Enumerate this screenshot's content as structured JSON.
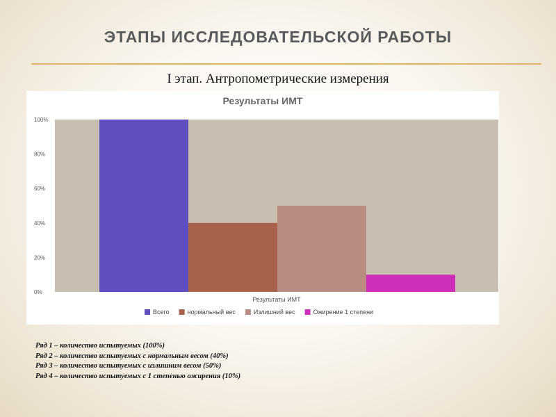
{
  "slide": {
    "title": "ЭТАПЫ ИССЛЕДОВАТЕЛЬСКОЙ РАБОТЫ",
    "subtitle": "I этап. Антропометрические измерения"
  },
  "chart_data": {
    "type": "bar",
    "title": "Результаты ИМТ",
    "xlabel": "Результаты ИМТ",
    "ylabel": "",
    "ylim": [
      0,
      100
    ],
    "y_ticks": [
      "0%",
      "20%",
      "40%",
      "60%",
      "80%",
      "100%"
    ],
    "y_tick_values": [
      0,
      20,
      40,
      60,
      80,
      100
    ],
    "grid": false,
    "legend_position": "bottom",
    "plot_background": "#c9bfb0",
    "series": [
      {
        "name": "Всего",
        "value": 100,
        "color": "#5f4fbf"
      },
      {
        "name": "нормальный вес",
        "value": 40,
        "color": "#a9624b"
      },
      {
        "name": "Излишний вес",
        "value": 50,
        "color": "#b88c80"
      },
      {
        "name": "Ожирение 1 степени",
        "value": 10,
        "color": "#cc2fba"
      }
    ]
  },
  "notes": [
    "Ряд 1 – количество испытуемых (100%)",
    "Ряд 2 – количество испытуемых с нормальным весом (40%)",
    "Ряд 3 – количество испытуемых с излишним весом (50%)",
    "Ряд 4 – количество испытуемых с 1 степенью ожирения (10%)"
  ]
}
